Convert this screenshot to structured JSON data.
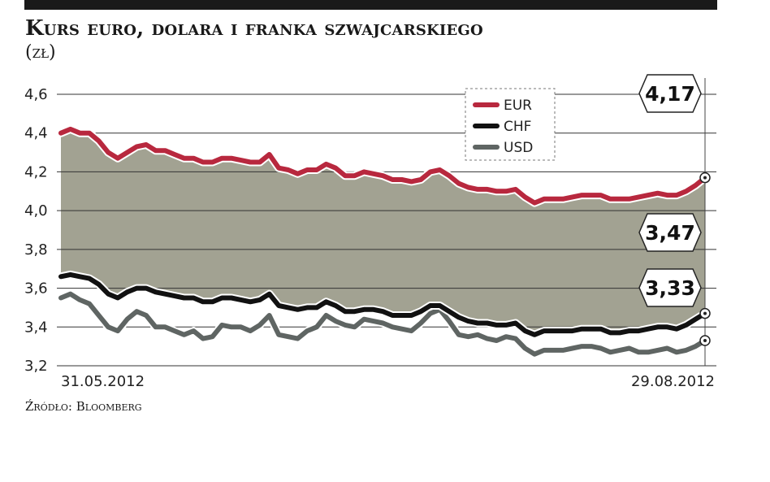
{
  "title": "Kurs euro, dolara i franka szwajcarskiego",
  "unit": "(zł)",
  "source": "Źródło: Bloomberg",
  "colors": {
    "EUR": "#b8283e",
    "CHF": "#111111",
    "USD": "#5f6563",
    "fill": "#9d9d8c"
  },
  "chart_data": {
    "type": "line",
    "ylim": [
      3.2,
      4.6
    ],
    "yticks": [
      "4,6",
      "4,4",
      "4,2",
      "4,0",
      "3,8",
      "3,6",
      "3,4",
      "3,2"
    ],
    "x_start_label": "31.05.2012",
    "x_end_label": "29.08.2012",
    "legend_position": "top-right",
    "grid": true,
    "series": [
      {
        "name": "EUR",
        "last_label": "4,17",
        "values": [
          4.4,
          4.42,
          4.4,
          4.4,
          4.36,
          4.3,
          4.27,
          4.3,
          4.33,
          4.34,
          4.31,
          4.31,
          4.29,
          4.27,
          4.27,
          4.25,
          4.25,
          4.27,
          4.27,
          4.26,
          4.25,
          4.25,
          4.29,
          4.22,
          4.21,
          4.19,
          4.21,
          4.21,
          4.24,
          4.22,
          4.18,
          4.18,
          4.2,
          4.19,
          4.18,
          4.16,
          4.16,
          4.15,
          4.16,
          4.2,
          4.21,
          4.18,
          4.14,
          4.12,
          4.11,
          4.11,
          4.1,
          4.1,
          4.11,
          4.07,
          4.04,
          4.06,
          4.06,
          4.06,
          4.07,
          4.08,
          4.08,
          4.08,
          4.06,
          4.06,
          4.06,
          4.07,
          4.08,
          4.09,
          4.08,
          4.08,
          4.1,
          4.13,
          4.17
        ]
      },
      {
        "name": "CHF",
        "last_label": "3,47",
        "values": [
          3.66,
          3.67,
          3.66,
          3.65,
          3.62,
          3.57,
          3.55,
          3.58,
          3.6,
          3.6,
          3.58,
          3.57,
          3.56,
          3.55,
          3.55,
          3.53,
          3.53,
          3.55,
          3.55,
          3.54,
          3.53,
          3.54,
          3.57,
          3.51,
          3.5,
          3.49,
          3.5,
          3.5,
          3.53,
          3.51,
          3.48,
          3.48,
          3.49,
          3.49,
          3.48,
          3.46,
          3.46,
          3.46,
          3.48,
          3.51,
          3.51,
          3.48,
          3.45,
          3.43,
          3.42,
          3.42,
          3.41,
          3.41,
          3.42,
          3.38,
          3.36,
          3.38,
          3.38,
          3.38,
          3.38,
          3.39,
          3.39,
          3.39,
          3.37,
          3.37,
          3.38,
          3.38,
          3.39,
          3.4,
          3.4,
          3.39,
          3.41,
          3.44,
          3.47
        ]
      },
      {
        "name": "USD",
        "last_label": "3,33",
        "values": [
          3.55,
          3.57,
          3.54,
          3.52,
          3.46,
          3.4,
          3.38,
          3.44,
          3.48,
          3.46,
          3.4,
          3.4,
          3.38,
          3.36,
          3.38,
          3.34,
          3.35,
          3.41,
          3.4,
          3.4,
          3.38,
          3.41,
          3.46,
          3.36,
          3.35,
          3.34,
          3.38,
          3.4,
          3.46,
          3.43,
          3.41,
          3.4,
          3.44,
          3.43,
          3.42,
          3.4,
          3.39,
          3.38,
          3.42,
          3.47,
          3.49,
          3.43,
          3.36,
          3.35,
          3.36,
          3.34,
          3.33,
          3.35,
          3.34,
          3.29,
          3.26,
          3.28,
          3.28,
          3.28,
          3.29,
          3.3,
          3.3,
          3.29,
          3.27,
          3.28,
          3.29,
          3.27,
          3.27,
          3.28,
          3.29,
          3.27,
          3.28,
          3.3,
          3.33
        ]
      }
    ]
  }
}
